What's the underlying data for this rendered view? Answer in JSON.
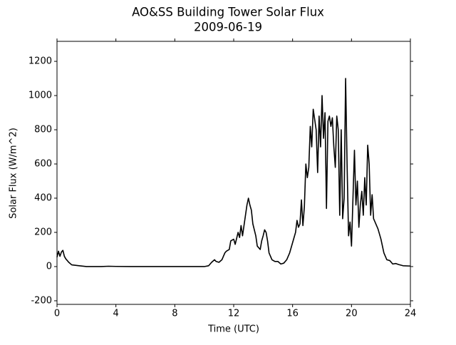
{
  "chart_data": {
    "type": "line",
    "title": "AO&SS Building Tower Solar Flux",
    "subtitle": "2009-06-19",
    "xlabel": "Time (UTC)",
    "ylabel": "Solar Flux (W/m^2)",
    "xlim": [
      0,
      24
    ],
    "xticks": [
      0,
      4,
      8,
      12,
      16,
      20,
      24
    ],
    "ylim": [
      -221,
      1317
    ],
    "yticks": [
      -200,
      0,
      200,
      400,
      600,
      800,
      1000,
      1200
    ],
    "grid": false,
    "x": [
      0,
      0.1,
      0.2,
      0.3,
      0.4,
      0.5,
      0.6,
      0.8,
      1.0,
      1.5,
      2,
      3,
      3.5,
      4,
      5,
      8,
      10,
      10.3,
      10.5,
      10.7,
      10.8,
      11,
      11.2,
      11.4,
      11.5,
      11.7,
      11.8,
      12,
      12.1,
      12.3,
      12.4,
      12.5,
      12.6,
      12.8,
      12.9,
      13.0,
      13.1,
      13.2,
      13.3,
      13.5,
      13.6,
      13.8,
      13.9,
      14.0,
      14.1,
      14.2,
      14.3,
      14.4,
      14.6,
      14.8,
      15.0,
      15.2,
      15.4,
      15.6,
      15.8,
      16.0,
      16.2,
      16.3,
      16.4,
      16.5,
      16.6,
      16.7,
      16.8,
      16.9,
      17.0,
      17.1,
      17.2,
      17.3,
      17.4,
      17.5,
      17.6,
      17.7,
      17.8,
      17.9,
      18.0,
      18.1,
      18.2,
      18.3,
      18.4,
      18.5,
      18.6,
      18.7,
      18.8,
      18.9,
      19.0,
      19.1,
      19.2,
      19.3,
      19.4,
      19.5,
      19.6,
      19.7,
      19.8,
      19.9,
      20.0,
      20.1,
      20.2,
      20.3,
      20.4,
      20.5,
      20.6,
      20.7,
      20.8,
      20.9,
      21.0,
      21.1,
      21.2,
      21.3,
      21.4,
      21.5,
      21.6,
      21.8,
      22.0,
      22.2,
      22.4,
      22.6,
      22.8,
      23.0,
      23.2,
      23.5,
      24
    ],
    "series": [
      {
        "color": "#000000",
        "values": [
          55,
          90,
          60,
          85,
          95,
          60,
          45,
          25,
          10,
          5,
          0,
          0,
          2,
          1,
          0,
          0,
          0,
          5,
          25,
          40,
          30,
          25,
          40,
          80,
          90,
          100,
          150,
          160,
          130,
          200,
          170,
          240,
          180,
          300,
          360,
          400,
          360,
          330,
          250,
          180,
          120,
          100,
          150,
          180,
          215,
          200,
          150,
          80,
          40,
          30,
          30,
          15,
          20,
          40,
          80,
          140,
          200,
          270,
          230,
          250,
          390,
          240,
          350,
          600,
          520,
          580,
          820,
          700,
          920,
          860,
          800,
          550,
          880,
          700,
          1000,
          750,
          900,
          340,
          850,
          880,
          820,
          870,
          700,
          580,
          880,
          800,
          300,
          800,
          280,
          400,
          1100,
          600,
          180,
          260,
          120,
          400,
          680,
          360,
          500,
          230,
          360,
          440,
          300,
          520,
          360,
          710,
          600,
          300,
          420,
          280,
          260,
          220,
          160,
          80,
          40,
          35,
          15,
          18,
          12,
          5,
          3
        ]
      }
    ]
  }
}
